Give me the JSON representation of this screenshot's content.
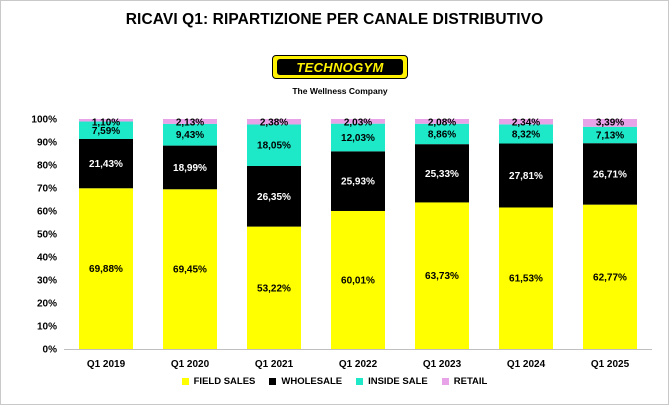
{
  "logo": {
    "text": "TECHNOGYM",
    "tagline": "The Wellness Company"
  },
  "chart_data": {
    "type": "bar",
    "stacked": true,
    "title": "RICAVI Q1: RIPARTIZIONE PER CANALE DISTRIBUTIVO",
    "categories": [
      "Q1 2019",
      "Q1 2020",
      "Q1 2021",
      "Q1 2022",
      "Q1 2023",
      "Q1 2024",
      "Q1 2025"
    ],
    "y_ticks": [
      "0%",
      "10%",
      "20%",
      "30%",
      "40%",
      "50%",
      "60%",
      "70%",
      "80%",
      "90%",
      "100%"
    ],
    "ylim": [
      0,
      100
    ],
    "series": [
      {
        "name": "FIELD SALES",
        "color": "#ffff00",
        "label_color": "#000000",
        "values": [
          69.88,
          69.45,
          53.22,
          60.01,
          63.73,
          61.53,
          62.77
        ],
        "labels": [
          "69,88%",
          "69,45%",
          "53,22%",
          "60,01%",
          "63,73%",
          "61,53%",
          "62,77%"
        ]
      },
      {
        "name": "WHOLESALE",
        "color": "#000000",
        "label_color": "#ffffff",
        "values": [
          21.43,
          18.99,
          26.35,
          25.93,
          25.33,
          27.81,
          26.71
        ],
        "labels": [
          "21,43%",
          "18,99%",
          "26,35%",
          "25,93%",
          "25,33%",
          "27,81%",
          "26,71%"
        ]
      },
      {
        "name": "INSIDE SALE",
        "color": "#1de9c8",
        "label_color": "#000000",
        "values": [
          7.59,
          9.43,
          18.05,
          12.03,
          8.86,
          8.32,
          7.13
        ],
        "labels": [
          "7,59%",
          "9,43%",
          "18,05%",
          "12,03%",
          "8,86%",
          "8,32%",
          "7,13%"
        ]
      },
      {
        "name": "RETAIL",
        "color": "#e8a2e8",
        "label_color": "#000000",
        "values": [
          1.1,
          2.13,
          2.38,
          2.03,
          2.08,
          2.34,
          3.39
        ],
        "labels": [
          "1,10%",
          "2,13%",
          "2,38%",
          "2,03%",
          "2,08%",
          "2,34%",
          "3,39%"
        ]
      }
    ],
    "legend_position": "bottom"
  }
}
